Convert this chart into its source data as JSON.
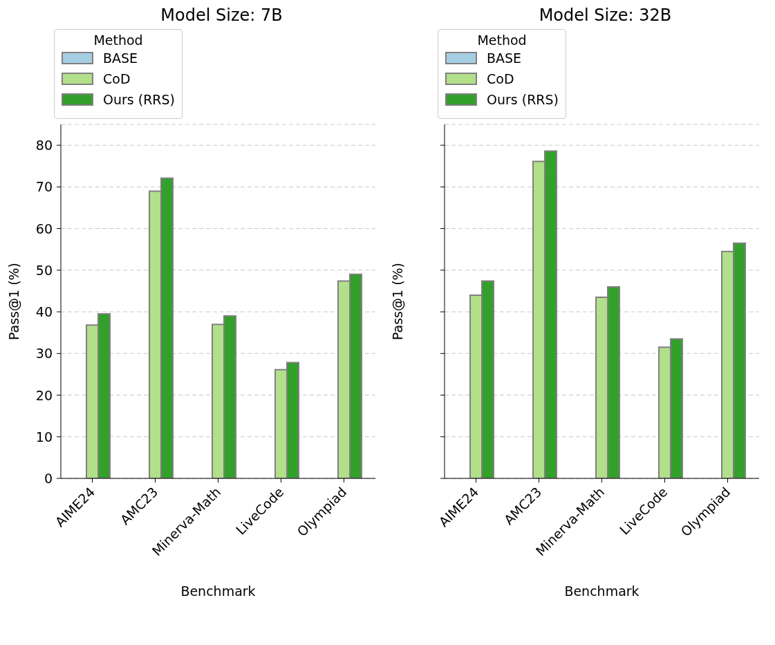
{
  "chart_data": [
    {
      "type": "bar",
      "title": "Model Size: 7B",
      "xlabel": "Benchmark",
      "ylabel": "Pass@1 (%)",
      "legend_title": "Method",
      "legend": "top left",
      "grid": "y",
      "categories": [
        "AIME24",
        "AMC23",
        "Minerva-Math",
        "LiveCode",
        "Olympiad"
      ],
      "ylim": [
        0,
        85
      ],
      "yticks": [
        0,
        10,
        20,
        30,
        40,
        50,
        60,
        70,
        80
      ],
      "series": [
        {
          "name": "BASE",
          "color": "#a6cee3",
          "values": [
            null,
            null,
            null,
            null,
            null
          ]
        },
        {
          "name": "CoD",
          "color": "#b2df8a",
          "values": [
            36.8,
            69.0,
            37.0,
            26.1,
            47.4
          ]
        },
        {
          "name": "Ours (RRS)",
          "color": "#33a02c",
          "values": [
            39.5,
            72.1,
            39.0,
            27.8,
            49.0
          ]
        }
      ]
    },
    {
      "type": "bar",
      "title": "Model Size: 32B",
      "xlabel": "Benchmark",
      "ylabel": "Pass@1 (%)",
      "legend_title": "Method",
      "legend": "top left",
      "grid": "y",
      "tick_labels": "x",
      "categories": [
        "AIME24",
        "AMC23",
        "Minerva-Math",
        "LiveCode",
        "Olympiad"
      ],
      "ylim": [
        0,
        85
      ],
      "yticks": [
        0,
        10,
        20,
        30,
        40,
        50,
        60,
        70,
        80
      ],
      "series": [
        {
          "name": "BASE",
          "color": "#a6cee3",
          "values": [
            null,
            null,
            null,
            null,
            null
          ]
        },
        {
          "name": "CoD",
          "color": "#b2df8a",
          "values": [
            44.0,
            76.1,
            43.5,
            31.5,
            54.5
          ]
        },
        {
          "name": "Ours (RRS)",
          "color": "#33a02c",
          "values": [
            47.4,
            78.6,
            46.0,
            33.5,
            56.5
          ]
        }
      ]
    }
  ]
}
